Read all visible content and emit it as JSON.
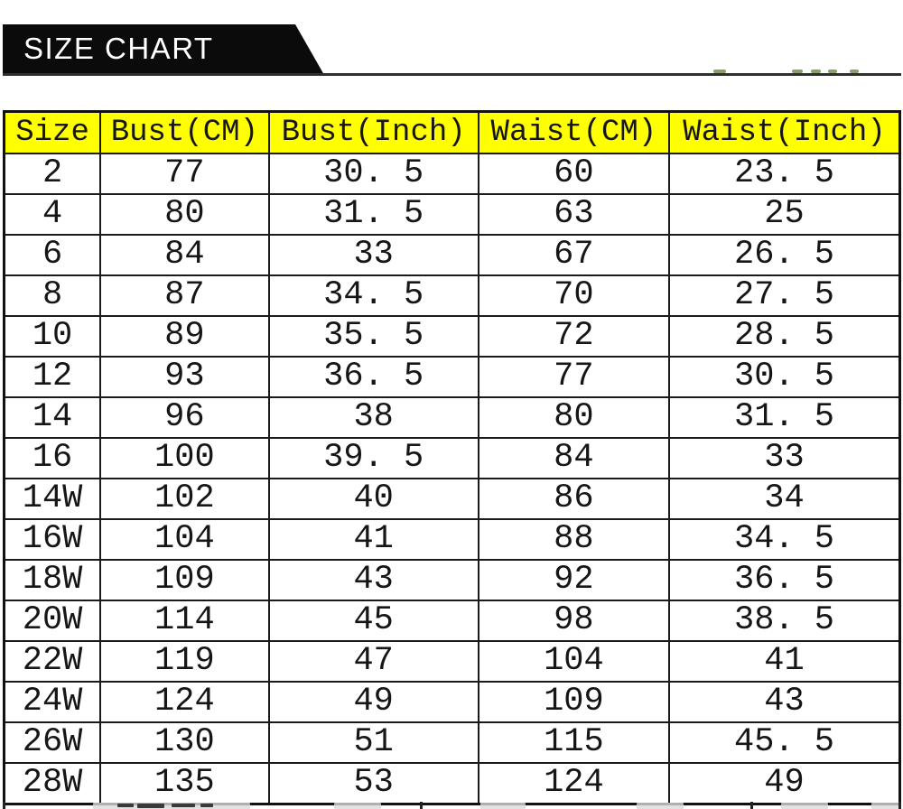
{
  "banner": {
    "title": "SIZE CHART"
  },
  "table": {
    "headers": [
      "Size",
      "Bust(CM)",
      "Bust(Inch)",
      "Waist(CM)",
      "Waist(Inch)"
    ],
    "rows": [
      [
        "2",
        "77",
        "30. 5",
        "60",
        "23. 5"
      ],
      [
        "4",
        "80",
        "31. 5",
        "63",
        "25"
      ],
      [
        "6",
        "84",
        "33",
        "67",
        "26. 5"
      ],
      [
        "8",
        "87",
        "34. 5",
        "70",
        "27. 5"
      ],
      [
        "10",
        "89",
        "35. 5",
        "72",
        "28. 5"
      ],
      [
        "12",
        "93",
        "36. 5",
        "77",
        "30. 5"
      ],
      [
        "14",
        "96",
        "38",
        "80",
        "31. 5"
      ],
      [
        "16",
        "100",
        "39. 5",
        "84",
        "33"
      ],
      [
        "14W",
        "102",
        "40",
        "86",
        "34"
      ],
      [
        "16W",
        "104",
        "41",
        "88",
        "34. 5"
      ],
      [
        "18W",
        "109",
        "43",
        "92",
        "36. 5"
      ],
      [
        "20W",
        "114",
        "45",
        "98",
        "38. 5"
      ],
      [
        "22W",
        "119",
        "47",
        "104",
        "41"
      ],
      [
        "24W",
        "124",
        "49",
        "109",
        "43"
      ],
      [
        "26W",
        "130",
        "51",
        "115",
        "45. 5"
      ],
      [
        "28W",
        "135",
        "53",
        "124",
        "49"
      ]
    ]
  },
  "chart_data": {
    "type": "table",
    "title": "SIZE CHART",
    "columns": [
      "Size",
      "Bust(CM)",
      "Bust(Inch)",
      "Waist(CM)",
      "Waist(Inch)"
    ],
    "rows": [
      [
        "2",
        77,
        30.5,
        60,
        23.5
      ],
      [
        "4",
        80,
        31.5,
        63,
        25
      ],
      [
        "6",
        84,
        33,
        67,
        26.5
      ],
      [
        "8",
        87,
        34.5,
        70,
        27.5
      ],
      [
        "10",
        89,
        35.5,
        72,
        28.5
      ],
      [
        "12",
        93,
        36.5,
        77,
        30.5
      ],
      [
        "14",
        96,
        38,
        80,
        31.5
      ],
      [
        "16",
        100,
        39.5,
        84,
        33
      ],
      [
        "14W",
        102,
        40,
        86,
        34
      ],
      [
        "16W",
        104,
        41,
        88,
        34.5
      ],
      [
        "18W",
        109,
        43,
        92,
        36.5
      ],
      [
        "20W",
        114,
        45,
        98,
        38.5
      ],
      [
        "22W",
        119,
        47,
        104,
        41
      ],
      [
        "24W",
        124,
        49,
        109,
        43
      ],
      [
        "26W",
        130,
        51,
        115,
        45.5
      ],
      [
        "28W",
        135,
        53,
        124,
        49
      ]
    ]
  },
  "colors": {
    "header_bg": "#ffff00",
    "banner_bg": "#0b0b0b",
    "border": "#1a1a1a",
    "text": "#161616",
    "watermark_green": "#5f7f35"
  }
}
